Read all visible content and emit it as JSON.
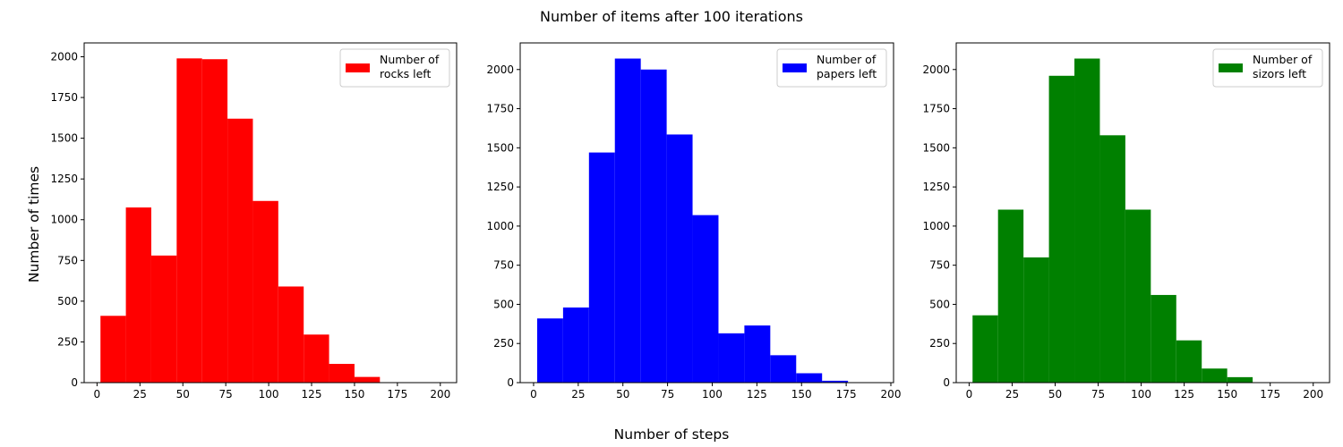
{
  "figure": {
    "title": "Number of items after 100 iterations",
    "xlabel": "Number of steps",
    "ylabel": "Number of times"
  },
  "chart_data": [
    {
      "type": "bar",
      "bin_edges": [
        2,
        16.8,
        31.6,
        46.4,
        61.2,
        76,
        90.8,
        105.6,
        120.4,
        135.2,
        150,
        164.8,
        179.6,
        194.4
      ],
      "values": [
        410,
        1075,
        780,
        1990,
        1985,
        1620,
        1115,
        590,
        295,
        115,
        35,
        0,
        0
      ],
      "xlim": [
        -7.5,
        209.5
      ],
      "ylim": [
        0,
        2085
      ],
      "xticks": [
        0,
        25,
        50,
        75,
        100,
        125,
        150,
        175,
        200
      ],
      "yticks": [
        0,
        250,
        500,
        750,
        1000,
        1250,
        1500,
        1750,
        2000
      ],
      "color": "#ff0000",
      "legend": {
        "label": "Number of\nrocks left",
        "position": "upper right"
      }
    },
    {
      "type": "bar",
      "bin_edges": [
        2,
        16.5,
        31,
        45.5,
        60,
        74.5,
        89,
        103.5,
        118,
        132.5,
        147,
        161.5,
        176,
        190.5
      ],
      "values": [
        410,
        480,
        1470,
        2070,
        2000,
        1585,
        1070,
        315,
        365,
        175,
        60,
        12,
        0
      ],
      "xlim": [
        -7.5,
        201.5
      ],
      "ylim": [
        0,
        2170
      ],
      "xticks": [
        0,
        25,
        50,
        75,
        100,
        125,
        150,
        175,
        200
      ],
      "yticks": [
        0,
        250,
        500,
        750,
        1000,
        1250,
        1500,
        1750,
        2000
      ],
      "color": "#0000ff",
      "legend": {
        "label": "Number of\npapers left",
        "position": "upper right"
      }
    },
    {
      "type": "bar",
      "bin_edges": [
        2,
        16.8,
        31.6,
        46.4,
        61.2,
        76,
        90.8,
        105.6,
        120.4,
        135.2,
        150,
        164.8,
        179.6,
        194.4
      ],
      "values": [
        430,
        1105,
        800,
        1960,
        2070,
        1580,
        1105,
        560,
        270,
        90,
        35,
        0,
        0
      ],
      "xlim": [
        -7.5,
        209.5
      ],
      "ylim": [
        0,
        2170
      ],
      "xticks": [
        0,
        25,
        50,
        75,
        100,
        125,
        150,
        175,
        200
      ],
      "yticks": [
        0,
        250,
        500,
        750,
        1000,
        1250,
        1500,
        1750,
        2000
      ],
      "color": "#008000",
      "legend": {
        "label": "Number of\nsizors left",
        "position": "upper right"
      }
    }
  ]
}
